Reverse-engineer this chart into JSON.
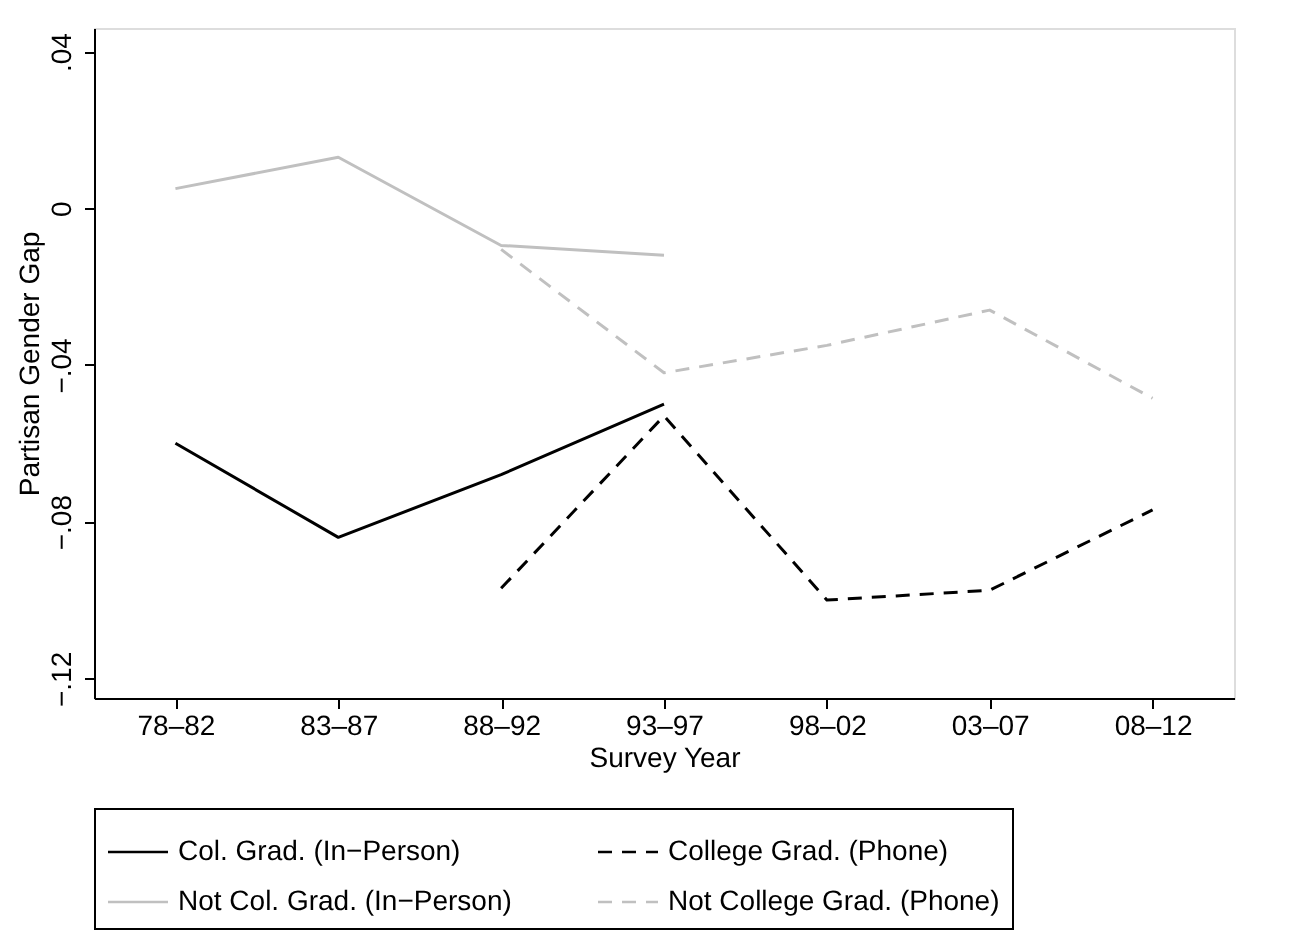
{
  "chart_data": {
    "type": "line",
    "xlabel": "Survey Year",
    "ylabel": "Partisan Gender Gap",
    "categories": [
      "78–82",
      "83–87",
      "88–92",
      "93–97",
      "98–02",
      "03–07",
      "08–12"
    ],
    "ylim": [
      -0.125,
      0.046
    ],
    "yticks": [
      {
        "value": -0.12,
        "label": "−.12"
      },
      {
        "value": -0.08,
        "label": "−.08"
      },
      {
        "value": -0.04,
        "label": "−.04"
      },
      0,
      {
        "value": 0.04,
        "label": ".04"
      }
    ],
    "grid": false,
    "legend": "bottom",
    "marker": "none",
    "series": [
      {
        "name": "Col. Grad. (In−Person)",
        "color": "#000000",
        "line_style": "solid",
        "values": [
          -0.06,
          -0.084,
          -0.068,
          -0.05,
          null,
          null,
          null
        ]
      },
      {
        "name": "College Grad. (Phone)",
        "color": "#000000",
        "line_style": "dashed",
        "values": [
          null,
          null,
          -0.097,
          -0.053,
          -0.1,
          -0.0975,
          -0.077
        ]
      },
      {
        "name": "Not Col. Grad. (In−Person)",
        "color": "#c0c0c0",
        "line_style": "solid",
        "values": [
          0.005,
          0.013,
          -0.0095,
          -0.012,
          null,
          null,
          null
        ]
      },
      {
        "name": "Not College Grad. (Phone)",
        "color": "#c0c0c0",
        "line_style": "dashed",
        "values": [
          null,
          null,
          -0.0105,
          -0.042,
          -0.035,
          -0.026,
          -0.0485
        ]
      }
    ]
  }
}
